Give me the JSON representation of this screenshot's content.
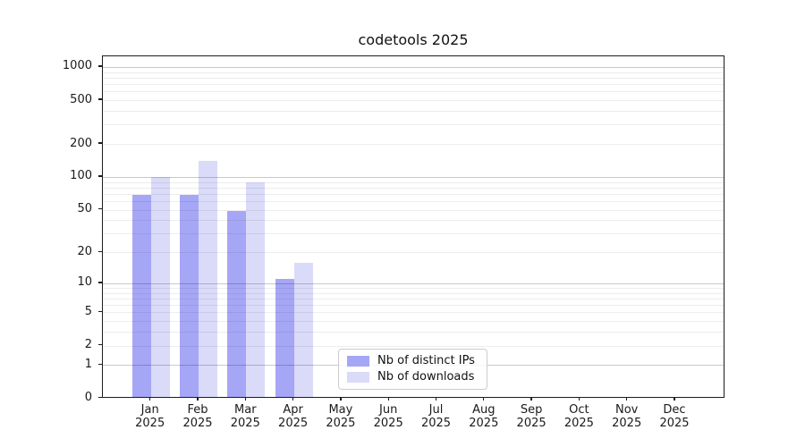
{
  "title": "codetools 2025",
  "chart_data": {
    "type": "bar",
    "title": "codetools 2025",
    "scale": "log10(value+1)",
    "grid": "horizontal, log minor + major lines",
    "legend_position": "bottom-center inside plot",
    "ylim": [
      0,
      1250
    ],
    "y_ticks": [
      0,
      1,
      2,
      5,
      10,
      20,
      50,
      100,
      200,
      500,
      1000
    ],
    "grid_major": [
      1,
      10,
      100,
      1000
    ],
    "categories": [
      "Jan 2025",
      "Feb 2025",
      "Mar 2025",
      "Apr 2025",
      "May 2025",
      "Jun 2025",
      "Jul 2025",
      "Aug 2025",
      "Sep 2025",
      "Oct 2025",
      "Nov 2025",
      "Dec 2025"
    ],
    "series": [
      {
        "name": "Nb of distinct IPs",
        "color": "#a6a6f6",
        "values": [
          69,
          68,
          49,
          11,
          0,
          0,
          0,
          0,
          0,
          0,
          0,
          0
        ]
      },
      {
        "name": "Nb of downloads",
        "color": "#dadaf9",
        "values": [
          100,
          140,
          90,
          16,
          0,
          0,
          0,
          0,
          0,
          0,
          0,
          0
        ]
      }
    ]
  }
}
